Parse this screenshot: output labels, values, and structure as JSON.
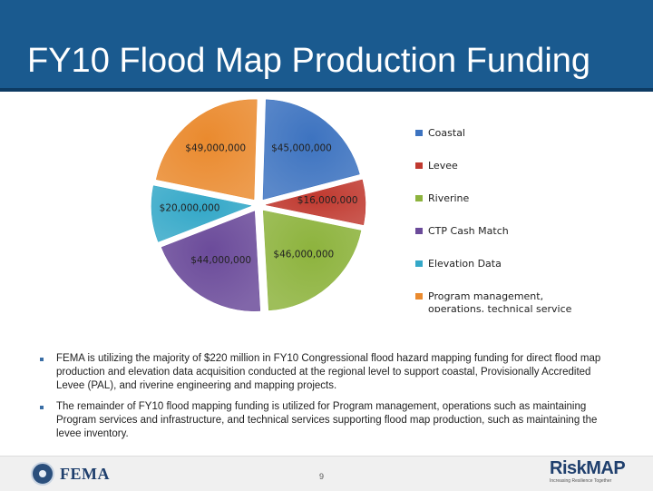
{
  "header": {
    "title": "FY10 Flood Map Production Funding"
  },
  "chart_data": {
    "type": "pie",
    "title": "",
    "series": [
      {
        "name": "Coastal",
        "value": 45000000,
        "label": "$45,000,000",
        "color": "#3d73c0"
      },
      {
        "name": "Levee",
        "value": 16000000,
        "label": "$16,000,000",
        "color": "#c0392f"
      },
      {
        "name": "Riverine",
        "value": 46000000,
        "label": "$46,000,000",
        "color": "#8db33d"
      },
      {
        "name": "CTP Cash Match",
        "value": 44000000,
        "label": "$44,000,000",
        "color": "#6b4b9a"
      },
      {
        "name": "Elevation Data",
        "value": 20000000,
        "label": "$20,000,000",
        "color": "#34a8c8"
      },
      {
        "name": "Program management, operations, technical services",
        "value": 49000000,
        "label": "$49,000,000",
        "color": "#ea8a2e"
      }
    ],
    "legend_position": "right",
    "exploded": true
  },
  "bullets": [
    "FEMA is utilizing the majority of $220 million in FY10 Congressional flood hazard mapping funding for direct flood map production and elevation data acquisition conducted at the regional level to support coastal, Provisionally Accredited Levee (PAL), and riverine engineering and mapping projects.",
    "The remainder of FY10 flood mapping funding is utilized for Program management, operations such as maintaining Program services and infrastructure, and technical services supporting flood map production, such as maintaining the levee inventory."
  ],
  "footer": {
    "fema_label": "FEMA",
    "page_number": "9",
    "riskmap_risk": "Risk",
    "riskmap_map": "MAP",
    "riskmap_tagline": "Increasing Resilience Together"
  }
}
